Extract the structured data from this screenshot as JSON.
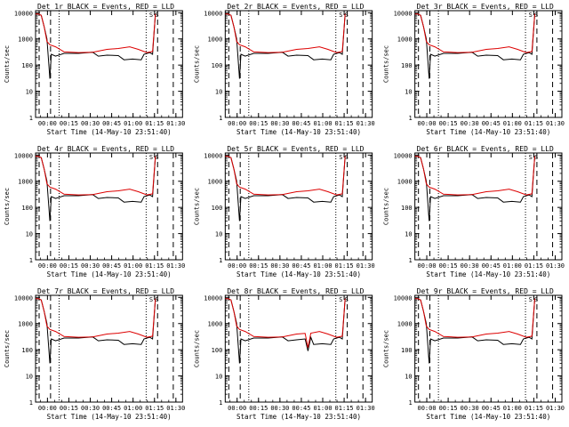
{
  "shared": {
    "xlabel": "Start Time (14-May-10 23:51:40)",
    "ylabel": "Counts/sec",
    "x_ticks": [
      "00:00",
      "00:15",
      "00:30",
      "00:45",
      "01:00",
      "01:15",
      "01:30"
    ],
    "x_tick_minutes": [
      8.33,
      23.33,
      38.33,
      53.33,
      68.33,
      83.33,
      98.33
    ],
    "xlim_minutes": [
      0,
      103
    ],
    "y_ticks": [
      "1",
      "10",
      "100",
      "1000",
      "10000"
    ],
    "y_tick_values": [
      1,
      10,
      100,
      1000,
      10000
    ],
    "ylim": [
      1,
      12000
    ],
    "yscale": "log",
    "colors": {
      "events": "#000000",
      "lld": "#dd0000",
      "axes": "#000000",
      "background": "#ffffff"
    },
    "markers_minutes": {
      "dashed": [
        2.5,
        10.5,
        85.5,
        96.5
      ],
      "dotted": [
        16.5,
        77.5
      ]
    },
    "markers_top_labels": [
      "S",
      "S"
    ]
  },
  "chart_data": [
    {
      "type": "line",
      "title": "Det 1r BLACK = Events, RED = LLD",
      "series": [
        {
          "name": "Events",
          "color": "#000000",
          "x": [
            0,
            2,
            4,
            6,
            8,
            10,
            11,
            14,
            20,
            30,
            40,
            44,
            50,
            58,
            62,
            68,
            74,
            76,
            80,
            82,
            84
          ],
          "y": [
            9000,
            9000,
            8000,
            3000,
            1000,
            30,
            260,
            220,
            280,
            280,
            310,
            220,
            240,
            230,
            160,
            170,
            160,
            260,
            300,
            260,
            9000
          ]
        },
        {
          "name": "LLD",
          "color": "#dd0000",
          "x": [
            0,
            2,
            4,
            6,
            8,
            10,
            14,
            20,
            30,
            40,
            50,
            58,
            66,
            72,
            78,
            82,
            84
          ],
          "y": [
            9000,
            9000,
            8000,
            3000,
            800,
            600,
            500,
            320,
            300,
            310,
            400,
            430,
            500,
            400,
            300,
            330,
            9000
          ]
        }
      ]
    },
    {
      "type": "line",
      "title": "Det 2r BLACK = Events, RED = LLD",
      "series": [
        {
          "name": "Events",
          "color": "#000000",
          "x": [
            0,
            2,
            4,
            6,
            8,
            10,
            11,
            14,
            20,
            30,
            40,
            44,
            50,
            58,
            62,
            68,
            74,
            76,
            80,
            82,
            84
          ],
          "y": [
            9000,
            9000,
            8000,
            3000,
            1000,
            30,
            260,
            220,
            280,
            280,
            310,
            220,
            240,
            230,
            160,
            170,
            160,
            260,
            300,
            260,
            9000
          ]
        },
        {
          "name": "LLD",
          "color": "#dd0000",
          "x": [
            0,
            2,
            4,
            6,
            8,
            10,
            14,
            20,
            30,
            40,
            50,
            58,
            66,
            72,
            78,
            82,
            84
          ],
          "y": [
            9000,
            9000,
            8000,
            3000,
            800,
            600,
            500,
            320,
            300,
            310,
            400,
            430,
            500,
            400,
            300,
            330,
            9000
          ]
        }
      ]
    },
    {
      "type": "line",
      "title": "Det 3r BLACK = Events, RED = LLD",
      "series": [
        {
          "name": "Events",
          "color": "#000000",
          "x": [
            0,
            2,
            4,
            6,
            8,
            10,
            11,
            14,
            20,
            30,
            40,
            44,
            50,
            58,
            62,
            68,
            74,
            76,
            80,
            82,
            84
          ],
          "y": [
            9000,
            9000,
            8000,
            3000,
            1000,
            30,
            260,
            220,
            280,
            280,
            310,
            220,
            240,
            230,
            160,
            170,
            160,
            260,
            300,
            260,
            9000
          ]
        },
        {
          "name": "LLD",
          "color": "#dd0000",
          "x": [
            0,
            2,
            4,
            6,
            8,
            10,
            14,
            20,
            30,
            40,
            50,
            58,
            66,
            72,
            78,
            82,
            84
          ],
          "y": [
            9000,
            9000,
            8000,
            3000,
            800,
            600,
            500,
            320,
            300,
            310,
            400,
            430,
            500,
            400,
            300,
            330,
            9000
          ]
        }
      ]
    },
    {
      "type": "line",
      "title": "Det 4r BLACK = Events, RED = LLD",
      "series": [
        {
          "name": "Events",
          "color": "#000000",
          "x": [
            0,
            2,
            4,
            6,
            8,
            10,
            11,
            14,
            20,
            30,
            40,
            44,
            50,
            58,
            62,
            68,
            74,
            76,
            80,
            82,
            84
          ],
          "y": [
            9000,
            9000,
            8000,
            3000,
            1000,
            30,
            260,
            220,
            280,
            280,
            310,
            220,
            240,
            230,
            160,
            170,
            160,
            260,
            300,
            260,
            9000
          ]
        },
        {
          "name": "LLD",
          "color": "#dd0000",
          "x": [
            0,
            2,
            4,
            6,
            8,
            10,
            14,
            20,
            30,
            40,
            50,
            58,
            66,
            72,
            78,
            82,
            84
          ],
          "y": [
            9000,
            9000,
            8000,
            3000,
            800,
            600,
            500,
            320,
            300,
            310,
            400,
            430,
            500,
            400,
            300,
            330,
            9000
          ]
        }
      ]
    },
    {
      "type": "line",
      "title": "Det 5r BLACK = Events, RED = LLD",
      "series": [
        {
          "name": "Events",
          "color": "#000000",
          "x": [
            0,
            2,
            4,
            6,
            8,
            10,
            11,
            14,
            20,
            30,
            40,
            44,
            50,
            58,
            62,
            68,
            74,
            76,
            80,
            82,
            84
          ],
          "y": [
            9000,
            9000,
            8000,
            3000,
            1000,
            30,
            260,
            220,
            280,
            280,
            310,
            220,
            240,
            230,
            160,
            170,
            160,
            260,
            300,
            260,
            9000
          ]
        },
        {
          "name": "LLD",
          "color": "#dd0000",
          "x": [
            0,
            2,
            4,
            6,
            8,
            10,
            14,
            20,
            30,
            40,
            50,
            58,
            66,
            72,
            78,
            82,
            84
          ],
          "y": [
            9000,
            9000,
            8000,
            3000,
            800,
            600,
            500,
            320,
            300,
            310,
            400,
            430,
            500,
            400,
            300,
            330,
            9000
          ]
        }
      ]
    },
    {
      "type": "line",
      "title": "Det 6r BLACK = Events, RED = LLD",
      "series": [
        {
          "name": "Events",
          "color": "#000000",
          "x": [
            0,
            2,
            4,
            6,
            8,
            10,
            11,
            14,
            20,
            30,
            40,
            44,
            50,
            58,
            62,
            68,
            74,
            76,
            80,
            82,
            84
          ],
          "y": [
            9000,
            9000,
            8000,
            3000,
            1000,
            30,
            260,
            220,
            280,
            280,
            310,
            220,
            240,
            230,
            160,
            170,
            160,
            260,
            300,
            260,
            9000
          ]
        },
        {
          "name": "LLD",
          "color": "#dd0000",
          "x": [
            0,
            2,
            4,
            6,
            8,
            10,
            14,
            20,
            30,
            40,
            50,
            58,
            66,
            72,
            78,
            82,
            84
          ],
          "y": [
            9000,
            9000,
            8000,
            3000,
            800,
            600,
            500,
            320,
            300,
            310,
            400,
            430,
            500,
            400,
            300,
            330,
            9000
          ]
        }
      ]
    },
    {
      "type": "line",
      "title": "Det 7r BLACK = Events, RED = LLD",
      "series": [
        {
          "name": "Events",
          "color": "#000000",
          "x": [
            0,
            2,
            4,
            6,
            8,
            10,
            11,
            14,
            20,
            30,
            40,
            44,
            50,
            58,
            62,
            68,
            74,
            76,
            80,
            82,
            84
          ],
          "y": [
            9000,
            9000,
            8000,
            3000,
            1000,
            30,
            260,
            220,
            280,
            280,
            310,
            220,
            240,
            230,
            160,
            170,
            160,
            260,
            300,
            260,
            9000
          ]
        },
        {
          "name": "LLD",
          "color": "#dd0000",
          "x": [
            0,
            2,
            4,
            6,
            8,
            10,
            14,
            20,
            30,
            40,
            50,
            58,
            66,
            72,
            78,
            82,
            84
          ],
          "y": [
            9000,
            9000,
            8000,
            3000,
            800,
            600,
            500,
            320,
            300,
            310,
            400,
            430,
            500,
            400,
            300,
            330,
            9000
          ]
        }
      ]
    },
    {
      "type": "line",
      "title": "Det 8r BLACK = Events, RED = LLD",
      "series": [
        {
          "name": "Events",
          "color": "#000000",
          "x": [
            0,
            2,
            4,
            6,
            8,
            10,
            11,
            14,
            20,
            30,
            40,
            44,
            50,
            56,
            58,
            60,
            62,
            68,
            74,
            76,
            80,
            82,
            84
          ],
          "y": [
            9000,
            9000,
            8000,
            3000,
            1000,
            30,
            260,
            220,
            280,
            280,
            310,
            220,
            240,
            260,
            90,
            300,
            160,
            170,
            160,
            260,
            300,
            260,
            9000
          ]
        },
        {
          "name": "LLD",
          "color": "#dd0000",
          "x": [
            0,
            2,
            4,
            6,
            8,
            10,
            14,
            20,
            30,
            40,
            50,
            56,
            58,
            60,
            66,
            72,
            78,
            82,
            84
          ],
          "y": [
            9000,
            9000,
            8000,
            3000,
            800,
            600,
            500,
            320,
            300,
            310,
            400,
            420,
            120,
            430,
            500,
            400,
            300,
            330,
            9000
          ]
        }
      ]
    },
    {
      "type": "line",
      "title": "Det 9r BLACK = Events, RED = LLD",
      "series": [
        {
          "name": "Events",
          "color": "#000000",
          "x": [
            0,
            2,
            4,
            6,
            8,
            10,
            11,
            14,
            20,
            30,
            40,
            44,
            50,
            58,
            62,
            68,
            74,
            76,
            80,
            82,
            84
          ],
          "y": [
            9000,
            9000,
            8000,
            3000,
            1000,
            30,
            260,
            220,
            280,
            280,
            310,
            220,
            240,
            230,
            160,
            170,
            160,
            260,
            300,
            260,
            9000
          ]
        },
        {
          "name": "LLD",
          "color": "#dd0000",
          "x": [
            0,
            2,
            4,
            6,
            8,
            10,
            14,
            20,
            30,
            40,
            50,
            58,
            66,
            72,
            78,
            82,
            84
          ],
          "y": [
            9000,
            9000,
            8000,
            3000,
            800,
            600,
            500,
            320,
            300,
            310,
            400,
            430,
            500,
            400,
            300,
            330,
            9000
          ]
        }
      ]
    }
  ]
}
